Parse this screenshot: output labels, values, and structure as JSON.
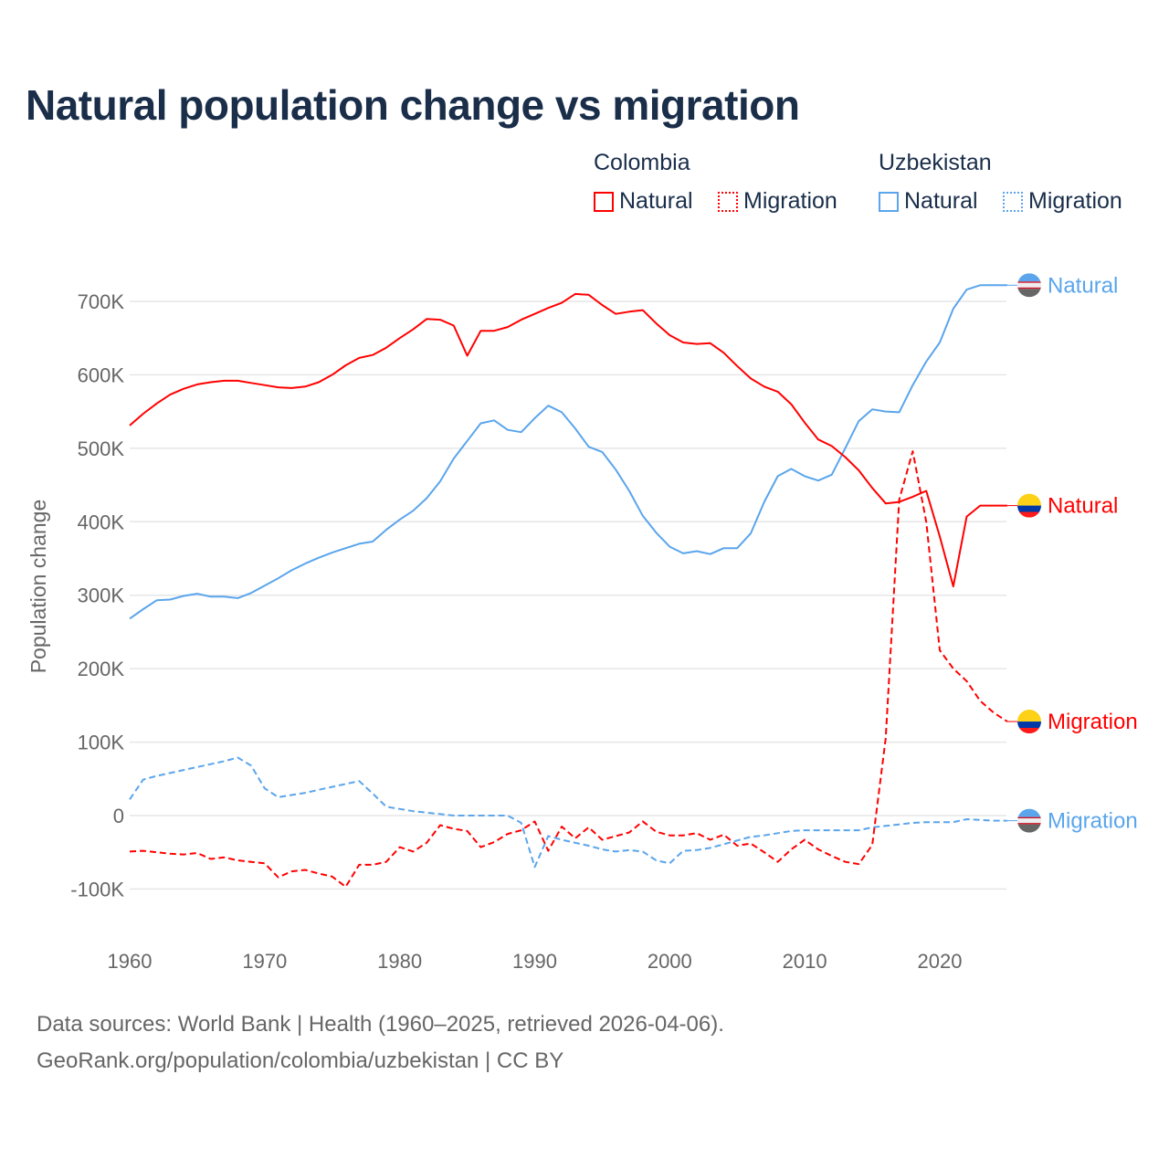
{
  "title": "Natural population change vs migration",
  "legend": {
    "groups": [
      {
        "name": "Colombia",
        "items": [
          {
            "label": "Natural",
            "style": "solid",
            "color": "#ff0000"
          },
          {
            "label": "Migration",
            "style": "dotted",
            "color": "#ff0000"
          }
        ]
      },
      {
        "name": "Uzbekistan",
        "items": [
          {
            "label": "Natural",
            "style": "solid",
            "color": "#5aa5ec"
          },
          {
            "label": "Migration",
            "style": "dotted",
            "color": "#5aa5ec"
          }
        ]
      }
    ]
  },
  "footer": {
    "line1": "Data sources: World Bank | Health (1960–2025, retrieved 2026-04-06).",
    "line2": "GeoRank.org/population/colombia/uzbekistan | CC BY"
  },
  "chart_data": {
    "type": "line",
    "title": "Natural population change vs migration",
    "xlabel": "",
    "ylabel": "Population change",
    "xlim": [
      1960,
      2025
    ],
    "ylim": [
      -150000,
      780000
    ],
    "x_ticks": [
      1960,
      1970,
      1980,
      1990,
      2000,
      2010,
      2020
    ],
    "x_tick_labels": [
      "1960",
      "1970",
      "1980",
      "1990",
      "2000",
      "2010",
      "2020"
    ],
    "y_ticks": [
      -100000,
      0,
      100000,
      200000,
      300000,
      400000,
      500000,
      600000,
      700000
    ],
    "y_tick_labels": [
      "-100K",
      "0",
      "100K",
      "200K",
      "300K",
      "400K",
      "500K",
      "600K",
      "700K"
    ],
    "grid": true,
    "legend_position": "top-right",
    "x_start": 1960,
    "series": [
      {
        "name": "Colombia Natural",
        "end_label": "Natural",
        "country": "Colombia",
        "color": "#ff0000",
        "dash": "solid",
        "values_k": [
          531,
          547,
          561,
          573,
          581,
          587,
          590,
          592,
          592,
          589,
          586,
          583,
          582,
          584,
          590,
          600,
          613,
          623,
          627,
          637,
          650,
          662,
          676,
          675,
          667,
          626,
          660,
          660,
          665,
          675,
          683,
          691,
          698,
          710,
          709,
          695,
          683,
          686,
          688,
          670,
          654,
          644,
          642,
          643,
          630,
          612,
          595,
          584,
          577,
          560,
          535,
          512,
          503,
          488,
          470,
          446,
          425,
          427,
          434,
          442,
          380,
          312,
          407,
          422,
          422,
          422
        ]
      },
      {
        "name": "Colombia Migration",
        "end_label": "Migration",
        "country": "Colombia",
        "color": "#ff0000",
        "dash": "dashed",
        "values_k": [
          -49,
          -48,
          -50,
          -52,
          -53,
          -51,
          -59,
          -57,
          -61,
          -63,
          -65,
          -84,
          -76,
          -74,
          -79,
          -83,
          -97,
          -67,
          -67,
          -63,
          -43,
          -49,
          -37,
          -13,
          -18,
          -21,
          -43,
          -36,
          -25,
          -20,
          -8,
          -48,
          -15,
          -31,
          -16,
          -33,
          -28,
          -23,
          -8,
          -22,
          -27,
          -27,
          -24,
          -33,
          -26,
          -41,
          -38,
          -50,
          -63,
          -46,
          -33,
          -46,
          -55,
          -63,
          -66,
          -40,
          105,
          430,
          496,
          400,
          225,
          200,
          183,
          156,
          140,
          128
        ]
      },
      {
        "name": "Uzbekistan Natural",
        "end_label": "Natural",
        "country": "Uzbekistan",
        "color": "#5aa5ec",
        "dash": "solid",
        "values_k": [
          268,
          281,
          293,
          294,
          299,
          302,
          298,
          298,
          296,
          303,
          313,
          323,
          334,
          343,
          351,
          358,
          364,
          370,
          373,
          389,
          403,
          415,
          432,
          455,
          486,
          510,
          534,
          538,
          525,
          522,
          541,
          558,
          549,
          527,
          502,
          495,
          471,
          442,
          408,
          385,
          366,
          357,
          360,
          356,
          364,
          364,
          384,
          427,
          462,
          472,
          462,
          456,
          464,
          500,
          537,
          553,
          550,
          549,
          586,
          618,
          644,
          690,
          716,
          722,
          722,
          722
        ]
      },
      {
        "name": "Uzbekistan Migration",
        "end_label": "Migration",
        "country": "Uzbekistan",
        "color": "#5aa5ec",
        "dash": "dashed",
        "values_k": [
          22,
          49,
          54,
          58,
          62,
          66,
          70,
          74,
          79,
          68,
          37,
          25,
          28,
          31,
          35,
          39,
          43,
          47,
          30,
          12,
          9,
          6,
          4,
          2,
          0,
          0,
          0,
          0,
          0,
          -10,
          -70,
          -28,
          -33,
          -37,
          -41,
          -46,
          -49,
          -47,
          -49,
          -61,
          -65,
          -48,
          -47,
          -44,
          -39,
          -34,
          -29,
          -27,
          -24,
          -21,
          -20,
          -20,
          -20,
          -20,
          -20,
          -16,
          -14,
          -12,
          -10,
          -9,
          -9,
          -9,
          -5,
          -6,
          -7,
          -7
        ]
      }
    ]
  }
}
